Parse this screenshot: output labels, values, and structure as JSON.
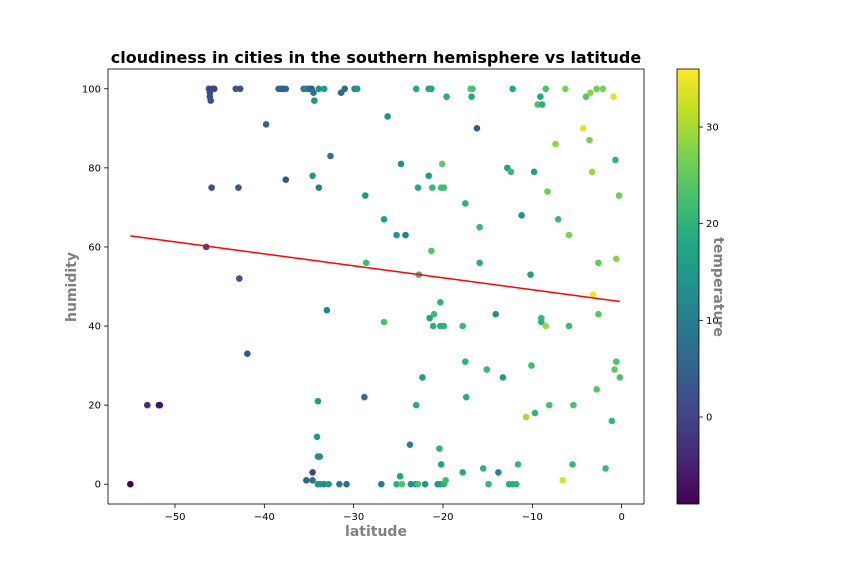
{
  "chart_data": {
    "type": "scatter",
    "title": "cloudiness in cities in the southern hemisphere vs latitude",
    "xlabel": "latitude",
    "ylabel": "humidity",
    "colorbar_label": "temperature",
    "xlim": [
      -57.5,
      2.5
    ],
    "ylim": [
      -5,
      105
    ],
    "x_ticks": [
      -50,
      -40,
      -30,
      -20,
      -10,
      0
    ],
    "x_tick_labels": [
      "−50",
      "−40",
      "−30",
      "−20",
      "−10",
      "0"
    ],
    "y_ticks": [
      0,
      20,
      40,
      60,
      80,
      100
    ],
    "y_tick_labels": [
      "0",
      "20",
      "40",
      "60",
      "80",
      "100"
    ],
    "color_range": [
      -9,
      36
    ],
    "colorbar_ticks": [
      0,
      10,
      20,
      30
    ],
    "colorbar_tick_labels": [
      "0",
      "10",
      "20",
      "30"
    ],
    "grid": false,
    "regression_line": {
      "x": [
        -55.0,
        -0.2
      ],
      "y": [
        62.8,
        46.2
      ],
      "color": "#ff0000"
    },
    "points": [
      [
        -55.0,
        0,
        -9
      ],
      [
        -53.1,
        20,
        -3
      ],
      [
        -51.7,
        20,
        -8
      ],
      [
        -51.8,
        20,
        -7
      ],
      [
        -46.5,
        60,
        1
      ],
      [
        -46.2,
        100,
        1
      ],
      [
        -46.1,
        99,
        1
      ],
      [
        -46.1,
        98,
        1
      ],
      [
        -46.0,
        97,
        2
      ],
      [
        -45.8,
        100,
        0
      ],
      [
        -45.6,
        100,
        0
      ],
      [
        -45.9,
        75,
        2
      ],
      [
        -43.2,
        100,
        3
      ],
      [
        -42.7,
        100,
        2
      ],
      [
        -42.9,
        75,
        3
      ],
      [
        -42.8,
        52,
        2
      ],
      [
        -41.9,
        33,
        3
      ],
      [
        -39.8,
        91,
        5
      ],
      [
        -38.4,
        100,
        5
      ],
      [
        -38.1,
        100,
        6
      ],
      [
        -37.9,
        100,
        4
      ],
      [
        -37.6,
        100,
        5
      ],
      [
        -37.6,
        77,
        3
      ],
      [
        -35.6,
        100,
        9
      ],
      [
        -35.3,
        100,
        12
      ],
      [
        -35.0,
        100,
        7
      ],
      [
        -34.7,
        100,
        4
      ],
      [
        -34.5,
        99,
        9
      ],
      [
        -34.4,
        97,
        14
      ],
      [
        -34.6,
        78,
        15
      ],
      [
        -33.9,
        100,
        13
      ],
      [
        -33.9,
        75,
        11
      ],
      [
        -33.3,
        100,
        16
      ],
      [
        -32.6,
        83,
        8
      ],
      [
        -33.0,
        44,
        11
      ],
      [
        -34.0,
        21,
        15
      ],
      [
        -34.1,
        12,
        15
      ],
      [
        -34.0,
        7,
        14
      ],
      [
        -33.8,
        7,
        13
      ],
      [
        -34.6,
        3,
        0
      ],
      [
        -35.3,
        1,
        5
      ],
      [
        -34.6,
        1,
        8
      ],
      [
        -34.0,
        0,
        14
      ],
      [
        -33.7,
        0,
        15
      ],
      [
        -33.3,
        0,
        13
      ],
      [
        -32.8,
        0,
        15
      ],
      [
        -31.6,
        0,
        9
      ],
      [
        -30.8,
        0,
        8
      ],
      [
        -31.4,
        99,
        6
      ],
      [
        -31.0,
        100,
        7
      ],
      [
        -29.9,
        100,
        12
      ],
      [
        -29.6,
        100,
        14
      ],
      [
        -28.7,
        73,
        15
      ],
      [
        -28.6,
        56,
        22
      ],
      [
        -28.8,
        22,
        8
      ],
      [
        -26.9,
        0,
        9
      ],
      [
        -26.6,
        67,
        16
      ],
      [
        -26.2,
        93,
        14
      ],
      [
        -26.6,
        41,
        23
      ],
      [
        -25.2,
        63,
        15
      ],
      [
        -24.7,
        81,
        13
      ],
      [
        -24.2,
        63,
        10
      ],
      [
        -23.7,
        10,
        10
      ],
      [
        -25.2,
        0,
        20
      ],
      [
        -24.8,
        2,
        17
      ],
      [
        -24.6,
        0,
        23
      ],
      [
        -23.6,
        0,
        13
      ],
      [
        -23.1,
        0,
        14
      ],
      [
        -22.8,
        0,
        23
      ],
      [
        -22.0,
        0,
        15
      ],
      [
        -23.0,
        100,
        18
      ],
      [
        -22.8,
        75,
        18
      ],
      [
        -23.0,
        20,
        19
      ],
      [
        -22.3,
        27,
        16
      ],
      [
        -22.7,
        53,
        21
      ],
      [
        -21.6,
        100,
        16
      ],
      [
        -21.3,
        100,
        18
      ],
      [
        -21.6,
        78,
        15
      ],
      [
        -21.2,
        75,
        21
      ],
      [
        -21.3,
        59,
        24
      ],
      [
        -21.5,
        42,
        17
      ],
      [
        -21.0,
        43,
        22
      ],
      [
        -21.1,
        40,
        19
      ],
      [
        -20.6,
        0,
        15
      ],
      [
        -20.3,
        0,
        15
      ],
      [
        -20.3,
        40,
        19
      ],
      [
        -20.3,
        46,
        20
      ],
      [
        -20.4,
        9,
        20
      ],
      [
        -20.2,
        5,
        17
      ],
      [
        -20.2,
        75,
        22
      ],
      [
        -19.9,
        75,
        22
      ],
      [
        -20.1,
        81,
        25
      ],
      [
        -19.9,
        40,
        20
      ],
      [
        -19.9,
        0,
        20
      ],
      [
        -19.7,
        1,
        22
      ],
      [
        -19.6,
        98,
        19
      ],
      [
        -17.8,
        40,
        21
      ],
      [
        -17.5,
        71,
        19
      ],
      [
        -17.5,
        31,
        20
      ],
      [
        -17.4,
        22,
        19
      ],
      [
        -17.8,
        3,
        18
      ],
      [
        -16.9,
        100,
        23
      ],
      [
        -16.7,
        100,
        23
      ],
      [
        -16.8,
        98,
        18
      ],
      [
        -16.2,
        90,
        4
      ],
      [
        -15.9,
        65,
        21
      ],
      [
        -15.9,
        56,
        19
      ],
      [
        -15.5,
        4,
        20
      ],
      [
        -15.1,
        29,
        21
      ],
      [
        -14.9,
        0,
        21
      ],
      [
        -14.1,
        43,
        13
      ],
      [
        -13.8,
        3,
        11
      ],
      [
        -13.3,
        27,
        16
      ],
      [
        -12.8,
        80,
        17
      ],
      [
        -12.4,
        79,
        21
      ],
      [
        -12.6,
        0,
        19
      ],
      [
        -12.2,
        0,
        19
      ],
      [
        -11.8,
        0,
        20
      ],
      [
        -12.2,
        100,
        18
      ],
      [
        -11.6,
        5,
        21
      ],
      [
        -11.2,
        68,
        14
      ],
      [
        -10.7,
        17,
        30
      ],
      [
        -10.2,
        53,
        16
      ],
      [
        -10.1,
        30,
        22
      ],
      [
        -9.8,
        79,
        16
      ],
      [
        -9.7,
        18,
        20
      ],
      [
        -9.4,
        96,
        23
      ],
      [
        -9.1,
        98,
        18
      ],
      [
        -8.9,
        96,
        19
      ],
      [
        -9.0,
        42,
        21
      ],
      [
        -9.0,
        41,
        20
      ],
      [
        -8.5,
        100,
        23
      ],
      [
        -8.5,
        40,
        29
      ],
      [
        -8.3,
        74,
        26
      ],
      [
        -8.1,
        20,
        23
      ],
      [
        -7.4,
        86,
        28
      ],
      [
        -7.1,
        67,
        21
      ],
      [
        -6.6,
        1,
        33
      ],
      [
        -6.3,
        100,
        27
      ],
      [
        -5.9,
        63,
        27
      ],
      [
        -5.9,
        40,
        22
      ],
      [
        -5.5,
        5,
        21
      ],
      [
        -5.4,
        20,
        23
      ],
      [
        -4.3,
        90,
        34
      ],
      [
        -4.0,
        98,
        24
      ],
      [
        -3.6,
        87,
        27
      ],
      [
        -3.5,
        99,
        28
      ],
      [
        -3.3,
        79,
        29
      ],
      [
        -3.2,
        48,
        35
      ],
      [
        -2.8,
        100,
        26
      ],
      [
        -2.1,
        100,
        27
      ],
      [
        -2.6,
        56,
        25
      ],
      [
        -2.6,
        43,
        24
      ],
      [
        -2.8,
        24,
        24
      ],
      [
        -1.8,
        4,
        21
      ],
      [
        -1.1,
        16,
        21
      ],
      [
        -0.9,
        98,
        34
      ],
      [
        -0.8,
        29,
        25
      ],
      [
        -0.7,
        82,
        20
      ],
      [
        -0.6,
        57,
        28
      ],
      [
        -0.6,
        31,
        23
      ],
      [
        -0.3,
        73,
        26
      ],
      [
        -0.2,
        27,
        23
      ]
    ]
  }
}
